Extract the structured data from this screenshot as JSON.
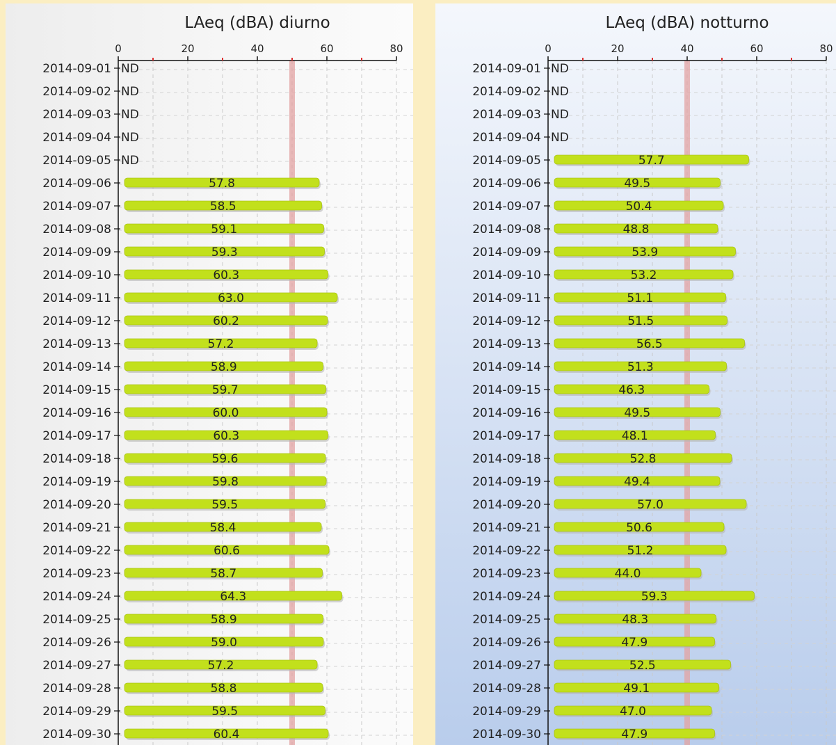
{
  "chart_data": [
    {
      "type": "bar",
      "orientation": "horizontal",
      "title": "LAeq (dBA) diurno",
      "xlim": [
        0,
        80
      ],
      "x_ticks": [
        "0",
        "20",
        "40",
        "60",
        "80"
      ],
      "reference_line": 50,
      "grid": true,
      "categories": [
        "2014-09-01",
        "2014-09-02",
        "2014-09-03",
        "2014-09-04",
        "2014-09-05",
        "2014-09-06",
        "2014-09-07",
        "2014-09-08",
        "2014-09-09",
        "2014-09-10",
        "2014-09-11",
        "2014-09-12",
        "2014-09-13",
        "2014-09-14",
        "2014-09-15",
        "2014-09-16",
        "2014-09-17",
        "2014-09-18",
        "2014-09-19",
        "2014-09-20",
        "2014-09-21",
        "2014-09-22",
        "2014-09-23",
        "2014-09-24",
        "2014-09-25",
        "2014-09-26",
        "2014-09-27",
        "2014-09-28",
        "2014-09-29",
        "2014-09-30"
      ],
      "values": [
        null,
        null,
        null,
        null,
        null,
        57.8,
        58.5,
        59.1,
        59.3,
        60.3,
        63.0,
        60.2,
        57.2,
        58.9,
        59.7,
        60.0,
        60.3,
        59.6,
        59.8,
        59.5,
        58.4,
        60.6,
        58.7,
        64.3,
        58.9,
        59.0,
        57.2,
        58.8,
        59.5,
        60.4
      ],
      "labels": [
        "ND",
        "ND",
        "ND",
        "ND",
        "ND",
        "57.8",
        "58.5",
        "59.1",
        "59.3",
        "60.3",
        "63.0",
        "60.2",
        "57.2",
        "58.9",
        "59.7",
        "60.0",
        "60.3",
        "59.6",
        "59.8",
        "59.5",
        "58.4",
        "60.6",
        "58.7",
        "64.3",
        "58.9",
        "59.0",
        "57.2",
        "58.8",
        "59.5",
        "60.4"
      ],
      "bar_color": "#c2e01c",
      "reference_color": "#e3a3a3"
    },
    {
      "type": "bar",
      "orientation": "horizontal",
      "title": "LAeq (dBA) notturno",
      "xlim": [
        0,
        80
      ],
      "x_ticks": [
        "0",
        "20",
        "40",
        "60",
        "80"
      ],
      "reference_line": 40,
      "grid": true,
      "categories": [
        "2014-09-01",
        "2014-09-02",
        "2014-09-03",
        "2014-09-04",
        "2014-09-05",
        "2014-09-06",
        "2014-09-07",
        "2014-09-08",
        "2014-09-09",
        "2014-09-10",
        "2014-09-11",
        "2014-09-12",
        "2014-09-13",
        "2014-09-14",
        "2014-09-15",
        "2014-09-16",
        "2014-09-17",
        "2014-09-18",
        "2014-09-19",
        "2014-09-20",
        "2014-09-21",
        "2014-09-22",
        "2014-09-23",
        "2014-09-24",
        "2014-09-25",
        "2014-09-26",
        "2014-09-27",
        "2014-09-28",
        "2014-09-29",
        "2014-09-30"
      ],
      "values": [
        null,
        null,
        null,
        null,
        57.7,
        49.5,
        50.4,
        48.8,
        53.9,
        53.2,
        51.1,
        51.5,
        56.5,
        51.3,
        46.3,
        49.5,
        48.1,
        52.8,
        49.4,
        57.0,
        50.6,
        51.2,
        44.0,
        59.3,
        48.3,
        47.9,
        52.5,
        49.1,
        47.0,
        47.9
      ],
      "labels": [
        "ND",
        "ND",
        "ND",
        "ND",
        "57.7",
        "49.5",
        "50.4",
        "48.8",
        "53.9",
        "53.2",
        "51.1",
        "51.5",
        "56.5",
        "51.3",
        "46.3",
        "49.5",
        "48.1",
        "52.8",
        "49.4",
        "57.0",
        "50.6",
        "51.2",
        "44.0",
        "59.3",
        "48.3",
        "47.9",
        "52.5",
        "49.1",
        "47.0",
        "47.9"
      ],
      "bar_color": "#c2e01c",
      "reference_color": "#e3a3a3"
    }
  ]
}
